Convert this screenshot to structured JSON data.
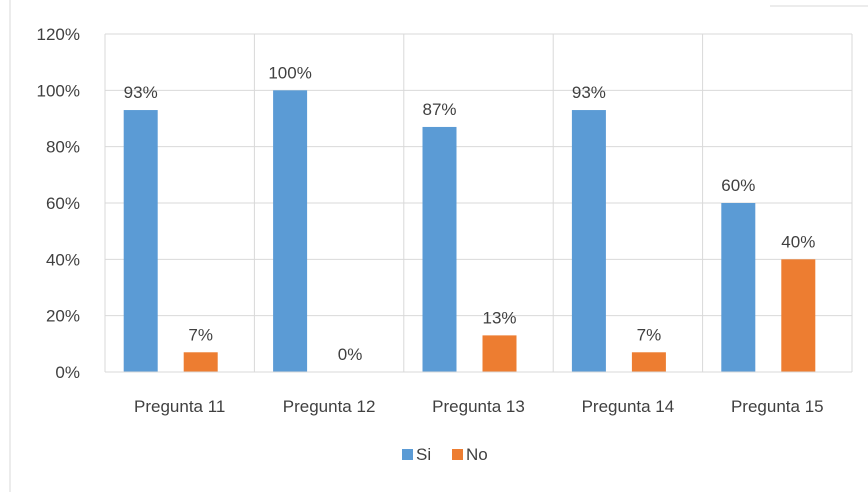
{
  "chart_data": {
    "type": "bar",
    "categories": [
      "Pregunta 11",
      "Pregunta 12",
      "Pregunta 13",
      "Pregunta 14",
      "Pregunta 15"
    ],
    "series": [
      {
        "name": "Si",
        "color": "#5B9BD5",
        "values": [
          93,
          100,
          87,
          93,
          60
        ],
        "labels": [
          "93%",
          "100%",
          "87%",
          "93%",
          "60%"
        ]
      },
      {
        "name": "No",
        "color": "#ED7D31",
        "values": [
          7,
          0,
          13,
          7,
          40
        ],
        "labels": [
          "7%",
          "0%",
          "13%",
          "7%",
          "40%"
        ]
      }
    ],
    "y_ticks": [
      "0%",
      "20%",
      "40%",
      "60%",
      "80%",
      "100%",
      "120%"
    ],
    "ylim": [
      0,
      120
    ],
    "grid": true,
    "legend_position": "bottom"
  }
}
